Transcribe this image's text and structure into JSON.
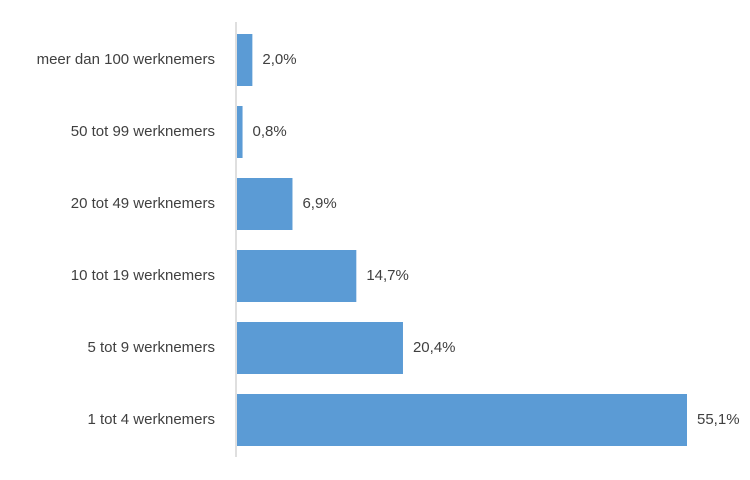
{
  "chart_data": {
    "type": "bar",
    "orientation": "horizontal",
    "categories": [
      "meer dan 100 werknemers",
      "50 tot 99 werknemers",
      "20 tot 49 werknemers",
      "10 tot 19 werknemers",
      "5 tot 9 werknemers",
      "1 tot 4 werknemers"
    ],
    "values": [
      2.0,
      0.8,
      6.9,
      14.7,
      20.4,
      55.1
    ],
    "value_labels": [
      "2,0%",
      "0,8%",
      "6,9%",
      "14,7%",
      "20,4%",
      "55,1%"
    ],
    "color": "#5b9bd5"
  }
}
